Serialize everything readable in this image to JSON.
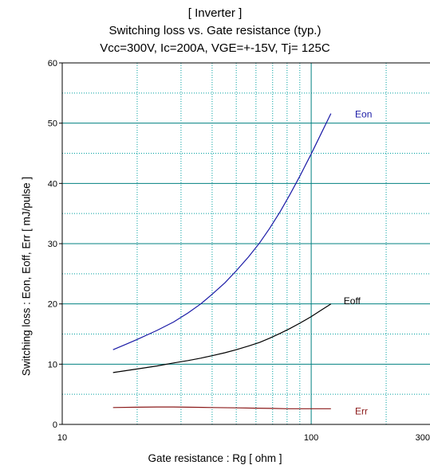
{
  "chart_data": {
    "type": "line",
    "title_lines": [
      "[ Inverter ]",
      "Switching loss  vs.  Gate resistance (typ.)",
      "Vcc=300V, Ic=200A, VGE=+-15V, Tj= 125C"
    ],
    "xlabel": "Gate resistance  :  Rg  [ ohm ]",
    "ylabel": "Switching loss  :  Eon, Eoff, Err  [ mJ/pulse ]",
    "x_scale": "log",
    "xlim": [
      10,
      300
    ],
    "ylim": [
      0,
      60
    ],
    "x_ticks": [
      10,
      100,
      300
    ],
    "x_tick_labels": [
      "10",
      "100",
      "300"
    ],
    "y_ticks": [
      0,
      10,
      20,
      30,
      40,
      50,
      60
    ],
    "y_tick_labels": [
      "0",
      "10",
      "20",
      "30",
      "40",
      "50",
      "60"
    ],
    "grid": true,
    "colors": {
      "major_grid": "#008080",
      "minor_grid": "#00a0a0",
      "axis": "#000000"
    },
    "series": [
      {
        "name": "Eon",
        "color": "#1a1aa6",
        "x": [
          16,
          18,
          20,
          24,
          28,
          32,
          36,
          40,
          45,
          50,
          56,
          62,
          68,
          75,
          82,
          90,
          100,
          110,
          120
        ],
        "y": [
          12.4,
          13.3,
          14.1,
          15.6,
          17.0,
          18.5,
          20.0,
          21.6,
          23.5,
          25.5,
          27.8,
          30.1,
          32.5,
          35.3,
          38.1,
          41.2,
          44.9,
          48.4,
          51.6
        ]
      },
      {
        "name": "Eoff",
        "color": "#000000",
        "x": [
          16,
          20,
          24,
          28,
          32,
          36,
          40,
          45,
          50,
          56,
          62,
          68,
          75,
          82,
          90,
          100,
          110,
          120
        ],
        "y": [
          8.6,
          9.2,
          9.7,
          10.2,
          10.6,
          11.0,
          11.4,
          11.9,
          12.4,
          13.0,
          13.6,
          14.3,
          15.1,
          15.9,
          16.8,
          17.9,
          19.0,
          20.0
        ]
      },
      {
        "name": "Err",
        "color": "#8b1a1a",
        "x": [
          16,
          20,
          24,
          28,
          32,
          40,
          50,
          60,
          70,
          80,
          90,
          100,
          110,
          120
        ],
        "y": [
          2.8,
          2.85,
          2.9,
          2.9,
          2.85,
          2.8,
          2.75,
          2.7,
          2.65,
          2.6,
          2.6,
          2.6,
          2.6,
          2.6
        ]
      }
    ],
    "series_labels": [
      {
        "text": "Eon",
        "x": 150,
        "y": 51.5
      },
      {
        "text": "Eoff",
        "x": 135,
        "y": 20.5
      },
      {
        "text": "Err",
        "x": 150,
        "y": 2.2
      }
    ]
  }
}
